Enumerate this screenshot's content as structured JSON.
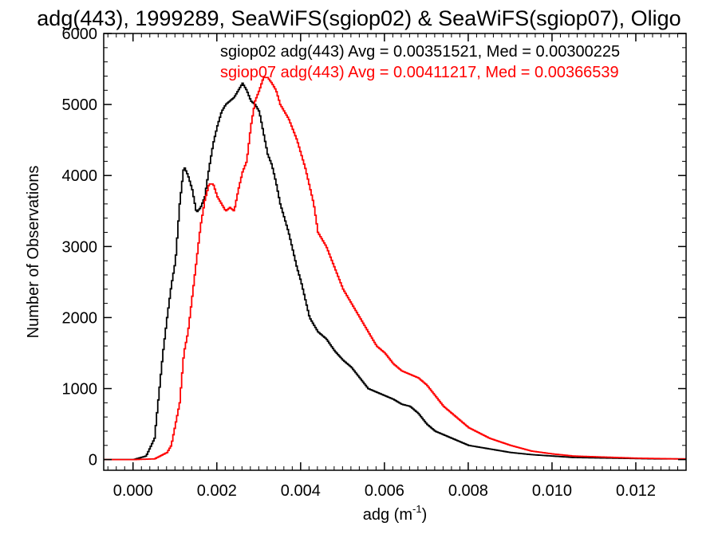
{
  "chart_data": {
    "type": "line",
    "title": "adg(443), 1999289, SeaWiFS(sgiop02) & SeaWiFS(sgiop07), Oligo",
    "xlabel": "adg (m",
    "xlabel_superscript": "-1",
    "xlabel_suffix": ")",
    "ylabel": "Number of Observations",
    "xlim": [
      -0.0007,
      0.0132
    ],
    "ylim": [
      -150,
      6000
    ],
    "x_ticks": [
      0.0,
      0.002,
      0.004,
      0.006,
      0.008,
      0.01,
      0.012
    ],
    "x_tick_labels": [
      "0.000",
      "0.002",
      "0.004",
      "0.006",
      "0.008",
      "0.010",
      "0.012"
    ],
    "y_ticks": [
      0,
      1000,
      2000,
      3000,
      4000,
      5000,
      6000
    ],
    "y_tick_labels": [
      "0",
      "1000",
      "2000",
      "3000",
      "4000",
      "5000",
      "6000"
    ],
    "grid": false,
    "annotations": [
      {
        "text": "sgiop02 adg(443) Avg = 0.00351521, Med = 0.00300225",
        "color": "#000000"
      },
      {
        "text": "sgiop07 adg(443) Avg = 0.00411217, Med = 0.00366539",
        "color": "#ff0000"
      }
    ],
    "series": [
      {
        "color": "#000000",
        "x": [
          -0.0007,
          0.0,
          0.0003,
          0.0005,
          0.0007,
          0.0008,
          0.0009,
          0.001,
          0.0011,
          0.0012,
          0.0013,
          0.0014,
          0.0015,
          0.0016,
          0.0017,
          0.0018,
          0.0019,
          0.002,
          0.0021,
          0.0022,
          0.0023,
          0.0024,
          0.0025,
          0.0026,
          0.0027,
          0.0028,
          0.0029,
          0.003,
          0.0031,
          0.0032,
          0.0033,
          0.0034,
          0.0035,
          0.0036,
          0.0037,
          0.0038,
          0.0039,
          0.004,
          0.0042,
          0.0044,
          0.0046,
          0.0048,
          0.005,
          0.0052,
          0.0054,
          0.0056,
          0.0058,
          0.006,
          0.0062,
          0.0064,
          0.0066,
          0.0068,
          0.007,
          0.0072,
          0.0074,
          0.0076,
          0.0078,
          0.008,
          0.0085,
          0.009,
          0.0095,
          0.01,
          0.0105,
          0.011,
          0.0115,
          0.012,
          0.0125,
          0.013,
          0.0132
        ],
        "values": [
          0,
          0,
          50,
          300,
          1500,
          2000,
          2450,
          2800,
          3600,
          4130,
          4000,
          3800,
          3480,
          3550,
          3700,
          4100,
          4450,
          4700,
          4900,
          5000,
          5050,
          5100,
          5200,
          5300,
          5200,
          5050,
          5000,
          4900,
          4600,
          4300,
          4150,
          3900,
          3600,
          3400,
          3200,
          2950,
          2700,
          2500,
          2000,
          1800,
          1700,
          1530,
          1400,
          1300,
          1150,
          1000,
          950,
          900,
          850,
          780,
          750,
          650,
          500,
          400,
          350,
          300,
          250,
          200,
          150,
          100,
          70,
          50,
          30,
          25,
          20,
          15,
          10,
          10,
          10
        ]
      },
      {
        "color": "#ff0000",
        "x": [
          -0.0007,
          0.0,
          0.0005,
          0.0008,
          0.0009,
          0.001,
          0.0011,
          0.0012,
          0.0013,
          0.0014,
          0.0015,
          0.0016,
          0.0017,
          0.0018,
          0.0019,
          0.002,
          0.0021,
          0.0022,
          0.0023,
          0.0024,
          0.0025,
          0.0026,
          0.0027,
          0.0028,
          0.0029,
          0.003,
          0.0031,
          0.0032,
          0.0033,
          0.0034,
          0.0035,
          0.0036,
          0.0037,
          0.0038,
          0.0039,
          0.004,
          0.0041,
          0.0042,
          0.0043,
          0.0044,
          0.0046,
          0.0048,
          0.005,
          0.0052,
          0.0054,
          0.0056,
          0.0058,
          0.006,
          0.0062,
          0.0064,
          0.0066,
          0.0068,
          0.007,
          0.0072,
          0.0074,
          0.0076,
          0.0078,
          0.008,
          0.0085,
          0.009,
          0.0095,
          0.01,
          0.0105,
          0.011,
          0.0115,
          0.012,
          0.0125,
          0.013,
          0.0132
        ],
        "values": [
          0,
          0,
          10,
          100,
          200,
          500,
          800,
          1500,
          1800,
          2300,
          2800,
          3300,
          3650,
          3880,
          3880,
          3700,
          3600,
          3500,
          3550,
          3500,
          3800,
          4050,
          4200,
          4700,
          5050,
          5200,
          5380,
          5380,
          5300,
          5200,
          5000,
          4900,
          4800,
          4650,
          4500,
          4300,
          4100,
          3850,
          3600,
          3200,
          3000,
          2700,
          2400,
          2200,
          2000,
          1800,
          1600,
          1500,
          1350,
          1250,
          1200,
          1150,
          1050,
          900,
          750,
          650,
          550,
          450,
          300,
          200,
          120,
          80,
          50,
          40,
          30,
          20,
          15,
          10,
          10
        ]
      }
    ]
  }
}
